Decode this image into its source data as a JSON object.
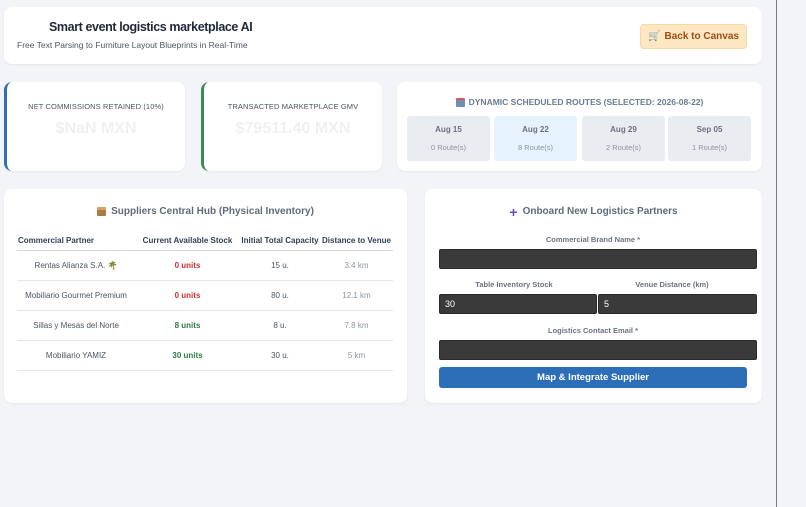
{
  "header": {
    "title": "Smart event logistics marketplace AI",
    "subtitle": "Free Text Parsing to Furniture Layout Blueprints in Real-Time",
    "back_button": "Back to Canvas",
    "back_icon": "cart-icon"
  },
  "metrics": [
    {
      "label": "NET COMMISSIONS RETAINED (10%)",
      "value": "$NaN MXN",
      "accent": "#2f6fb7"
    },
    {
      "label": "TRANSACTED MARKETPLACE GMV",
      "value": "$79511.40 MXN",
      "accent": "#3d8a56"
    }
  ],
  "routes": {
    "title": "DYNAMIC SCHEDULED ROUTES (SELECTED: 2026-08-22)",
    "items": [
      {
        "date": "Aug 15",
        "count": "0 Route(s)",
        "selected": false
      },
      {
        "date": "Aug 22",
        "count": "8 Route(s)",
        "selected": true
      },
      {
        "date": "Aug 29",
        "count": "2 Route(s)",
        "selected": false
      },
      {
        "date": "Sep 05",
        "count": "1 Route(s)",
        "selected": false
      }
    ]
  },
  "hub": {
    "title": "Suppliers Central Hub (Physical Inventory)",
    "columns": [
      "Commercial Partner",
      "Current Available Stock",
      "Initial Total Capacity",
      "Distance to Venue"
    ],
    "rows": [
      {
        "partner": "Rentas Alianza S.A. 🌴",
        "stock": "0 units",
        "status": "low",
        "capacity": "15 u.",
        "distance": "3.4 km"
      },
      {
        "partner": "Mobiliario Gourmet Premium",
        "stock": "0 units",
        "status": "low",
        "capacity": "80 u.",
        "distance": "12.1 km"
      },
      {
        "partner": "Sillas y Mesas del Norte",
        "stock": "8 units",
        "status": "ok",
        "capacity": "8 u.",
        "distance": "7.8 km"
      },
      {
        "partner": "Mobiliario YAMIZ",
        "stock": "30 units",
        "status": "ok",
        "capacity": "30 u.",
        "distance": "5 km"
      }
    ]
  },
  "onboard": {
    "title": "Onboard New Logistics Partners",
    "brand_label": "Commercial Brand Name *",
    "brand_value": "",
    "stock_label": "Table Inventory Stock",
    "stock_value": "30",
    "distance_label": "Venue Distance (km)",
    "distance_value": "5",
    "email_label": "Logistics Contact Email *",
    "email_value": "",
    "submit_label": "Map & Integrate Supplier"
  },
  "colors": {
    "low_stock": "#cf3030",
    "ok_stock": "#2e7d42",
    "primary": "#2c6fb8"
  }
}
